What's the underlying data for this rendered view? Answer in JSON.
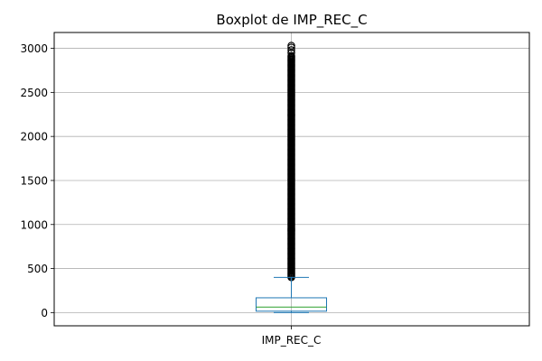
{
  "chart_data": {
    "type": "box",
    "title": "Boxplot de IMP_REC_C",
    "categories": [
      "IMP_REC_C"
    ],
    "ylim": [
      -150,
      3180
    ],
    "yticks": [
      0,
      500,
      1000,
      1500,
      2000,
      2500,
      3000
    ],
    "grid": true,
    "box": {
      "whisker_low": 0,
      "q1": 16,
      "median": 62,
      "q3": 168,
      "whisker_high": 400,
      "outliers_min": 400,
      "outliers_max": 2920,
      "outliers_extra": [
        2950,
        2980,
        3010,
        3030
      ]
    },
    "colors": {
      "box": "#1f77b4",
      "median": "#2ca02c",
      "outlier": "#000000",
      "grid": "#b0b0b0",
      "axes": "#000000"
    }
  }
}
